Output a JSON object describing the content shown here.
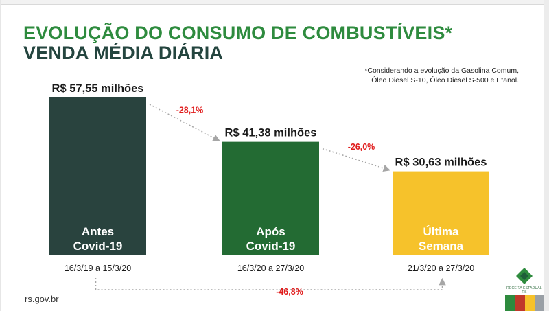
{
  "title_line1": "EVOLUÇÃO DO CONSUMO DE COMBUSTÍVEIS*",
  "title_line2": "VENDA MÉDIA DIÁRIA",
  "footnote_line1": "*Considerando a evolução da Gasolina Comum,",
  "footnote_line2": "Óleo Diesel S-10, Óleo Diesel S-500 e Etanol.",
  "site_url": "rs.gov.br",
  "logo_text": "RECEITA ESTADUAL RS",
  "chart_data": {
    "type": "bar",
    "unit": "R$ milhões",
    "bars": [
      {
        "label_line1": "Antes",
        "label_line2": "Covid-19",
        "value": 57.55,
        "value_label": "R$ 57,55 milhões",
        "period": "16/3/19 a 15/3/20",
        "color": "#29433e"
      },
      {
        "label_line1": "Após",
        "label_line2": "Covid-19",
        "value": 41.38,
        "value_label": "R$ 41,38 milhões",
        "period": "16/3/20 a 27/3/20",
        "color": "#236b33"
      },
      {
        "label_line1": "Última",
        "label_line2": "Semana",
        "value": 30.63,
        "value_label": "R$ 30,63 milhões",
        "period": "21/3/20 a 27/3/20",
        "color": "#f6c22b"
      }
    ],
    "changes": [
      {
        "from": 0,
        "to": 1,
        "label": "-28,1%"
      },
      {
        "from": 1,
        "to": 2,
        "label": "-26,0%"
      },
      {
        "from": 0,
        "to": 2,
        "label": "-46,8%"
      }
    ],
    "change_color": "#e01b1b",
    "arrow_color": "#a6a6a6"
  },
  "brand_stripes": [
    "#2e8b3e",
    "#c0392b",
    "#f6c22b",
    "#9aa0a6"
  ]
}
